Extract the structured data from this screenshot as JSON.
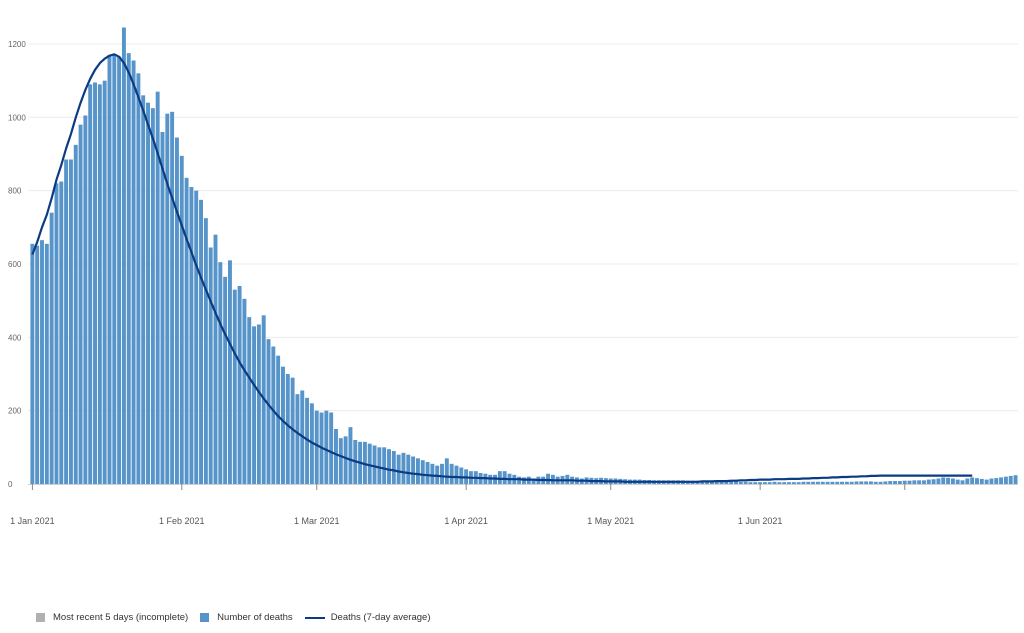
{
  "chart_data": {
    "type": "bar",
    "title": "",
    "xlabel": "",
    "ylabel": "",
    "ylim": [
      0,
      1250
    ],
    "yticks": [
      0,
      200,
      400,
      600,
      800,
      1000,
      1200
    ],
    "ytick_labels": [
      "0",
      "200",
      "400",
      "600",
      "800",
      "1000",
      "1200"
    ],
    "xtick_labels": [
      "1 Jan 2021",
      "1 Feb 2021",
      "1 Mar 2021",
      "1 Apr 2021",
      "1 May 2021",
      "1 Jun 2021"
    ],
    "grid": true,
    "legend_position": "bottom-left",
    "start_date": "2021-01-01",
    "bar_values": [
      655,
      650,
      665,
      655,
      740,
      820,
      825,
      885,
      885,
      925,
      980,
      1005,
      1090,
      1095,
      1090,
      1100,
      1170,
      1170,
      1165,
      1245,
      1175,
      1155,
      1120,
      1060,
      1040,
      1025,
      1070,
      960,
      1010,
      1015,
      945,
      895,
      835,
      810,
      800,
      775,
      725,
      645,
      680,
      605,
      565,
      610,
      530,
      540,
      505,
      455,
      430,
      435,
      460,
      395,
      375,
      350,
      320,
      300,
      290,
      245,
      255,
      235,
      220,
      200,
      195,
      200,
      195,
      150,
      125,
      130,
      155,
      120,
      115,
      115,
      110,
      105,
      100,
      100,
      95,
      90,
      80,
      85,
      80,
      75,
      70,
      65,
      60,
      55,
      50,
      55,
      70,
      55,
      50,
      45,
      40,
      35,
      35,
      30,
      28,
      25,
      25,
      35,
      35,
      28,
      25,
      20,
      18,
      20,
      15,
      20,
      20,
      28,
      25,
      20,
      22,
      25,
      20,
      18,
      15,
      18,
      17,
      16,
      17,
      16,
      15,
      15,
      14,
      13,
      12,
      12,
      12,
      11,
      11,
      10,
      10,
      10,
      10,
      10,
      10,
      10,
      9,
      9,
      9,
      9,
      9,
      9,
      9,
      10,
      10,
      8,
      8,
      6,
      6,
      5,
      5,
      5,
      5,
      5,
      6,
      5,
      5,
      5,
      5,
      5,
      6,
      6,
      6,
      6,
      6,
      6,
      6,
      6,
      6,
      6,
      6,
      7,
      7,
      7,
      7,
      6,
      6,
      7,
      8,
      8,
      8,
      9,
      9,
      10,
      10,
      10,
      12,
      13,
      15,
      18,
      17,
      15,
      12,
      10,
      15,
      18,
      16,
      14,
      12,
      15,
      16,
      18,
      20,
      22,
      24
    ],
    "avg_values": [
      626,
      660,
      700,
      735,
      780,
      830,
      870,
      915,
      955,
      1000,
      1040,
      1075,
      1105,
      1130,
      1148,
      1160,
      1168,
      1172,
      1165,
      1148,
      1122,
      1090,
      1055,
      1018,
      980,
      942,
      902,
      860,
      818,
      780,
      742,
      705,
      668,
      632,
      596,
      562,
      530,
      498,
      466,
      436,
      408,
      382,
      356,
      332,
      310,
      290,
      270,
      251,
      233,
      216,
      200,
      185,
      172,
      160,
      149,
      139,
      130,
      121,
      113,
      106,
      99,
      93,
      87,
      81,
      76,
      71,
      66,
      62,
      58,
      54,
      51,
      48,
      45,
      42,
      39,
      37,
      34,
      32,
      30,
      28,
      27,
      25,
      24,
      23,
      22,
      21,
      20,
      19,
      19,
      18,
      18,
      17,
      17,
      16,
      16,
      15,
      15,
      14,
      14,
      13,
      13,
      13,
      12,
      12,
      12,
      11,
      11,
      11,
      10,
      10,
      10,
      10,
      10,
      9,
      9,
      9,
      8,
      8,
      8,
      7,
      7,
      7,
      7,
      6,
      6,
      6,
      6,
      6,
      6,
      6,
      6,
      6,
      6,
      6,
      6,
      6,
      6,
      6,
      6,
      7,
      7,
      7,
      8,
      8,
      8,
      9,
      9,
      10,
      10,
      11,
      11,
      12,
      12,
      12,
      13,
      13,
      13,
      14,
      14,
      14,
      15,
      15,
      16,
      16,
      17,
      17,
      18,
      18,
      19,
      19,
      20,
      20,
      21,
      21,
      22,
      22,
      23,
      23,
      23,
      23,
      23,
      23,
      23,
      23,
      23,
      23,
      23,
      23,
      23,
      23,
      23,
      23,
      23,
      23,
      23,
      23
    ],
    "series": [
      {
        "name": "Most recent 5 days (incomplete)",
        "color": "#b0b0b0"
      },
      {
        "name": "Number of deaths",
        "color": "#5694ca"
      },
      {
        "name": "Deaths (7-day average)",
        "color": "#0b3b83"
      }
    ]
  }
}
